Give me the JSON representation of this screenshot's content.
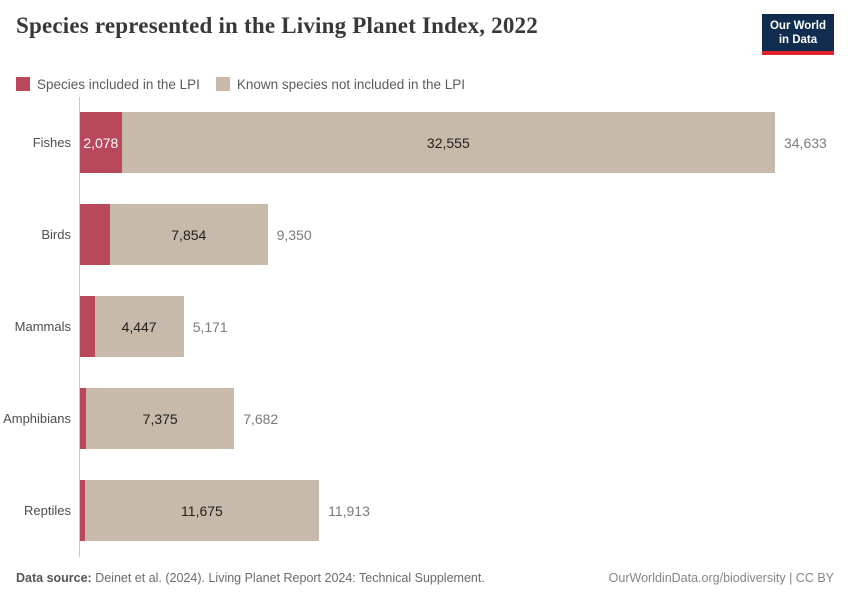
{
  "header": {
    "title": "Species represented in the Living Planet Index, 2022",
    "logo": {
      "line1": "Our World",
      "line2": "in Data"
    }
  },
  "legend": [
    {
      "label": "Species included in the LPI",
      "color": "#b9485c"
    },
    {
      "label": "Known species not included in the LPI",
      "color": "#c8baab"
    }
  ],
  "chart_data": {
    "type": "bar",
    "orientation": "horizontal",
    "stacked": true,
    "title": "Species represented in the Living Planet Index, 2022",
    "categories": [
      "Fishes",
      "Birds",
      "Mammals",
      "Amphibians",
      "Reptiles"
    ],
    "series": [
      {
        "name": "Species included in the LPI",
        "color": "#b9485c",
        "values": [
          2078,
          1496,
          724,
          307,
          238
        ]
      },
      {
        "name": "Known species not included in the LPI",
        "color": "#c8baab",
        "values": [
          32555,
          7854,
          4447,
          7375,
          11675
        ]
      }
    ],
    "totals": [
      34633,
      9350,
      5171,
      7682,
      11913
    ],
    "visible_segment_labels": {
      "included": [
        "2,078",
        null,
        null,
        null,
        null
      ],
      "not_included": [
        "32,555",
        "7,854",
        "4,447",
        "7,375",
        "11,675"
      ],
      "totals": [
        "34,633",
        "9,350",
        "5,171",
        "7,682",
        "11,913"
      ]
    },
    "legend_position": "top",
    "grid": false
  },
  "footer": {
    "source_label": "Data source:",
    "source_text": "Deinet et al. (2024). Living Planet Report 2024: Technical Supplement.",
    "credit": "OurWorldinData.org/biodiversity | CC BY"
  }
}
